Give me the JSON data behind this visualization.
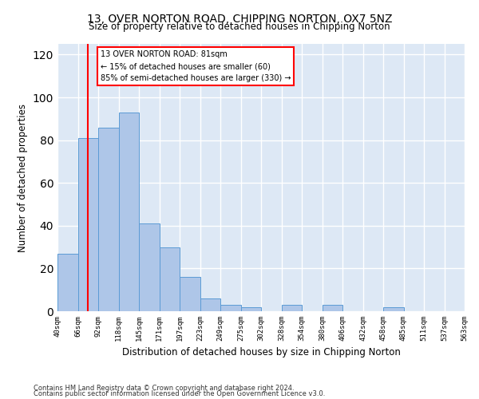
{
  "title_line1": "13, OVER NORTON ROAD, CHIPPING NORTON, OX7 5NZ",
  "title_line2": "Size of property relative to detached houses in Chipping Norton",
  "xlabel": "Distribution of detached houses by size in Chipping Norton",
  "ylabel": "Number of detached properties",
  "bar_values": [
    27,
    81,
    86,
    93,
    41,
    30,
    16,
    6,
    3,
    2,
    0,
    3,
    0,
    3,
    0,
    0,
    2,
    0,
    0,
    0
  ],
  "categories": [
    "40sqm",
    "66sqm",
    "92sqm",
    "118sqm",
    "145sqm",
    "171sqm",
    "197sqm",
    "223sqm",
    "249sqm",
    "275sqm",
    "302sqm",
    "328sqm",
    "354sqm",
    "380sqm",
    "406sqm",
    "432sqm",
    "458sqm",
    "485sqm",
    "511sqm",
    "537sqm",
    "563sqm"
  ],
  "bar_color": "#aec6e8",
  "bar_edge_color": "#5b9bd5",
  "ylim": [
    0,
    125
  ],
  "yticks": [
    0,
    20,
    40,
    60,
    80,
    100,
    120
  ],
  "annotation_line1": "13 OVER NORTON ROAD: 81sqm",
  "annotation_line2": "← 15% of detached houses are smaller (60)",
  "annotation_line3": "85% of semi-detached houses are larger (330) →",
  "vline_x": 1.5,
  "footer_line1": "Contains HM Land Registry data © Crown copyright and database right 2024.",
  "footer_line2": "Contains public sector information licensed under the Open Government Licence v3.0.",
  "background_color": "#dde8f5"
}
